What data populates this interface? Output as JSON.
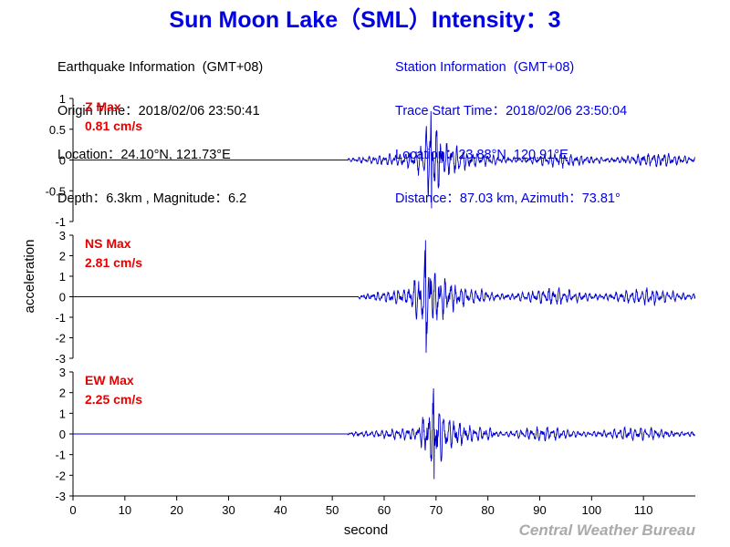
{
  "chart_data": {
    "type": "line",
    "title": "Sun Moon Lake（SML）Intensity：3",
    "earthquake_info": {
      "header": "Earthquake Information  (GMT+08)",
      "origin_time": "Origin Time：2018/02/06 23:50:41",
      "location": "Location：24.10°N, 121.73°E",
      "depth_magnitude": "Depth：6.3km , Magnitude：6.2"
    },
    "station_info": {
      "header": "Station Information  (GMT+08)",
      "trace_start": "Trace Start Time：2018/02/06 23:50:04",
      "location": "Location：23.88°N, 120.91°E",
      "distance": "Distance：87.03 km, Azimuth：73.81°"
    },
    "xlabel": "second",
    "ylabel": "acceleration",
    "xlim": [
      0,
      120
    ],
    "xticks": [
      0,
      10,
      20,
      30,
      40,
      50,
      60,
      70,
      80,
      90,
      100,
      110
    ],
    "credit": "Central Weather Bureau",
    "colors": {
      "title": "#0000e6",
      "trace": "#0000cc",
      "max_label": "#e60000",
      "credit": "#aaaaaa"
    },
    "panels": [
      {
        "component": "Z",
        "max_label": "Z Max",
        "max_value": "0.81 cm/s",
        "ylim": [
          -1,
          1
        ],
        "yticks": [
          "1",
          "0.5",
          "0",
          "-0.5",
          "-1"
        ],
        "onset": 53,
        "peak_time": 69,
        "peak": 0.81
      },
      {
        "component": "NS",
        "max_label": "NS Max",
        "max_value": "2.81 cm/s",
        "ylim": [
          -3,
          3
        ],
        "yticks": [
          "3",
          "2",
          "1",
          "0",
          "-1",
          "-2",
          "-3"
        ],
        "onset": 55,
        "peak_time": 68,
        "peak": 2.81
      },
      {
        "component": "EW",
        "max_label": "EW Max",
        "max_value": "2.25 cm/s",
        "ylim": [
          -3,
          3
        ],
        "yticks": [
          "3",
          "2",
          "1",
          "0",
          "-1",
          "-2",
          "-3"
        ],
        "onset": 53,
        "peak_time": 69.5,
        "peak": 2.25
      }
    ]
  }
}
